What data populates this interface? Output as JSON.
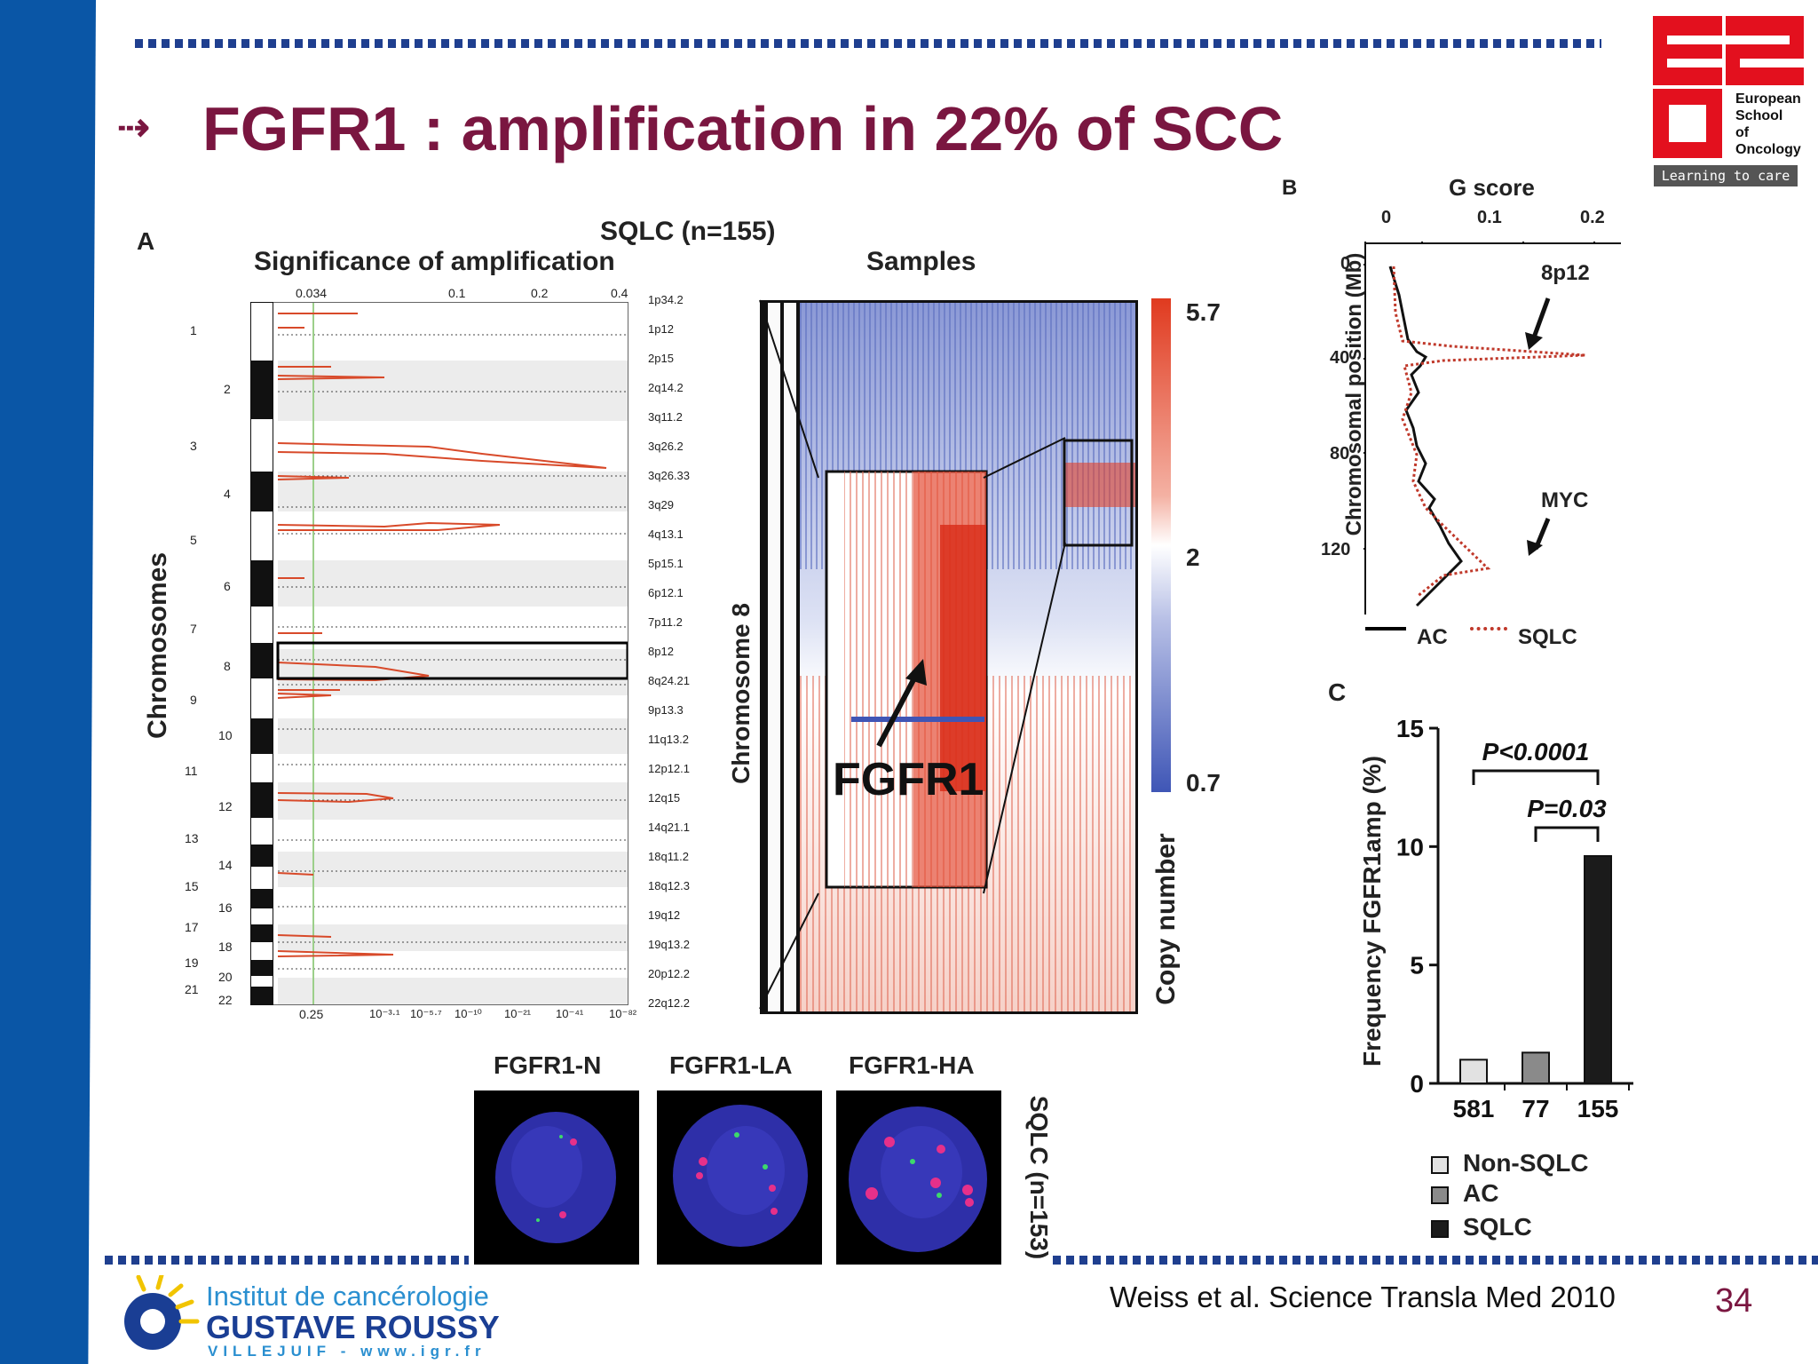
{
  "slide": {
    "title": "FGFR1 : amplification in 22% of SCC",
    "arrow": "⇢",
    "citation": "Weiss et al. Science Transla Med  2010",
    "page_number": "34"
  },
  "logo_eso": {
    "lines": [
      "European",
      "School",
      "of",
      "Oncology"
    ],
    "tagline": "Learning to care"
  },
  "logo_igr": {
    "line1": "Institut de cancérologie",
    "line2": "GUSTAVE ROUSSY",
    "line3": "VILLEJUIF - www.igr.fr"
  },
  "panel_a": {
    "letter": "A",
    "header": "SQLC (n=155)",
    "subtitle": "Significance of amplification",
    "samples_label": "Samples",
    "y_label": "Chromosomes",
    "top_ticks": [
      "0.034",
      "0.1",
      "0.2",
      "0.4"
    ],
    "bottom_ticks": [
      "0.25",
      "10⁻³·¹",
      "10⁻⁵·⁷",
      "10⁻¹⁰",
      "10⁻²¹",
      "10⁻⁴¹",
      "10⁻⁸²"
    ],
    "chromosomes": [
      "1",
      "2",
      "3",
      "4",
      "5",
      "6",
      "7",
      "8",
      "9",
      "10",
      "11",
      "12",
      "13",
      "14",
      "15",
      "16",
      "17",
      "18",
      "19",
      "20",
      "21",
      "22"
    ],
    "bands": [
      "1p34.2",
      "1p12",
      "2p15",
      "2q14.2",
      "3q11.2",
      "3q26.2",
      "3q26.33",
      "3q29",
      "4q13.1",
      "5p15.1",
      "6p12.1",
      "7p11.2",
      "8p12",
      "8q24.21",
      "9p13.3",
      "11q13.2",
      "12p12.1",
      "12q15",
      "14q21.1",
      "18q11.2",
      "18q12.3",
      "19q12",
      "19q13.2",
      "20p12.2",
      "22q12.2"
    ],
    "chromosome8_label": "Chromosome 8",
    "gene_label": "FGFR1",
    "colorbar": {
      "max": "5.7",
      "mid": "2",
      "min": "0.7",
      "label": "Copy number"
    }
  },
  "fish": {
    "labels": [
      "FGFR1-N",
      "FGFR1-LA",
      "FGFR1-HA"
    ],
    "side_label": "SQLC (n=153)"
  },
  "panel_b": {
    "letter": "B",
    "title": "G score",
    "x_ticks": [
      "0",
      "0.1",
      "0.2"
    ],
    "y_label": "Chromosomal position (Mb)",
    "y_ticks": [
      "0",
      "40",
      "80",
      "120"
    ],
    "annotations": [
      "8p12",
      "MYC"
    ],
    "legend": [
      {
        "name": "AC",
        "color": "#000000"
      },
      {
        "name": "SQLC",
        "color": "#c0392b"
      }
    ]
  },
  "chart_data": [
    {
      "type": "bar",
      "panel": "C",
      "categories": [
        "581",
        "77",
        "155"
      ],
      "values": [
        1.0,
        1.3,
        9.6
      ],
      "colors": [
        "#e2e2e2",
        "#8a8a8a",
        "#1b1b1b"
      ],
      "legend": [
        "Non-SQLC",
        "AC",
        "SQLC"
      ],
      "ylabel": "Frequency FGFR1amp (%)",
      "y_ticks": [
        "0",
        "5",
        "10",
        "15"
      ],
      "ylim": [
        0,
        15
      ],
      "annotations": [
        "P<0.0001",
        "P=0.03"
      ]
    }
  ]
}
